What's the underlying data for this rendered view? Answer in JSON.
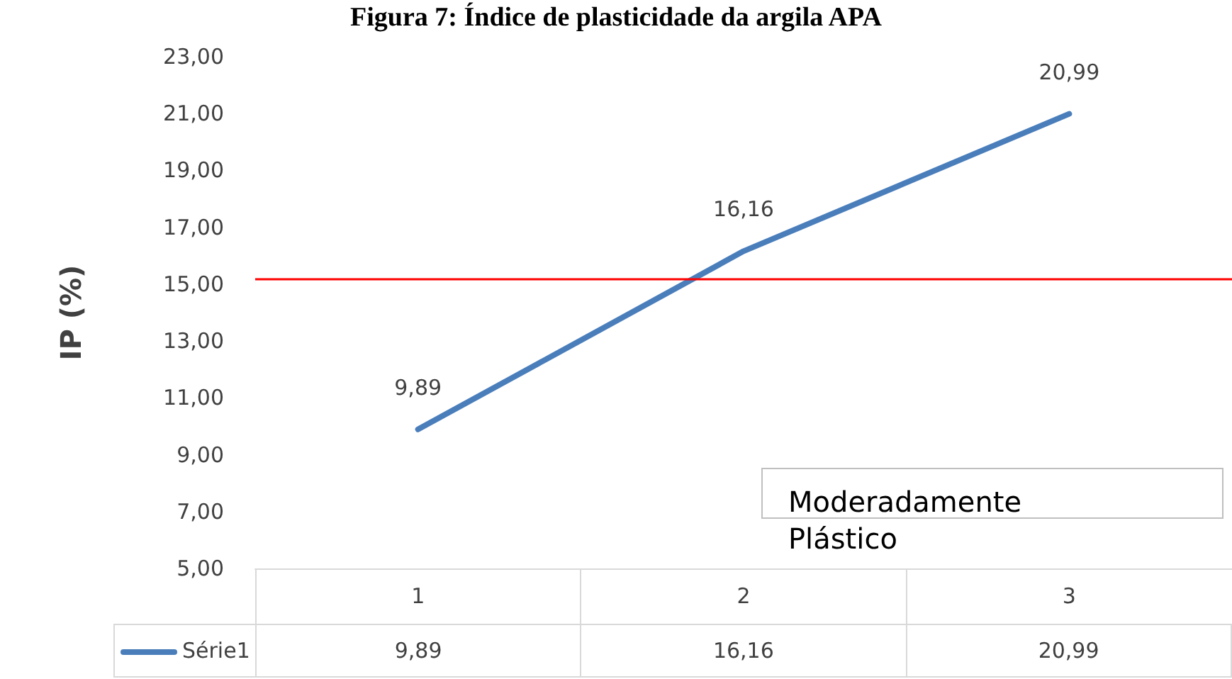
{
  "chart_data": {
    "type": "line",
    "title": "Figura 7: Índice de plasticidade da argila APA",
    "ylabel": "IP (%)",
    "categories": [
      "1",
      "2",
      "3"
    ],
    "series": [
      {
        "name": "Série1",
        "color": "#4a7ebb",
        "values": [
          9.89,
          16.16,
          20.99
        ],
        "value_labels": [
          "9,89",
          "16,16",
          "20,99"
        ]
      }
    ],
    "ylim": [
      5,
      23
    ],
    "yticks": [
      {
        "value": 5,
        "label": "5,00"
      },
      {
        "value": 7,
        "label": "7,00"
      },
      {
        "value": 9,
        "label": "9,00"
      },
      {
        "value": 11,
        "label": "11,00"
      },
      {
        "value": 13,
        "label": "13,00"
      },
      {
        "value": 15,
        "label": "15,00"
      },
      {
        "value": 17,
        "label": "17,00"
      },
      {
        "value": 19,
        "label": "19,00"
      },
      {
        "value": 21,
        "label": "21,00"
      },
      {
        "value": 23,
        "label": "23,00"
      }
    ],
    "ref_lines": [
      {
        "axis": "y",
        "value": 15.2,
        "color": "#ff0000"
      }
    ],
    "annotations": [
      "Moderadamente Plástico"
    ],
    "grid": false,
    "legend": "bottom",
    "marker": "none",
    "line_style": "solid"
  }
}
